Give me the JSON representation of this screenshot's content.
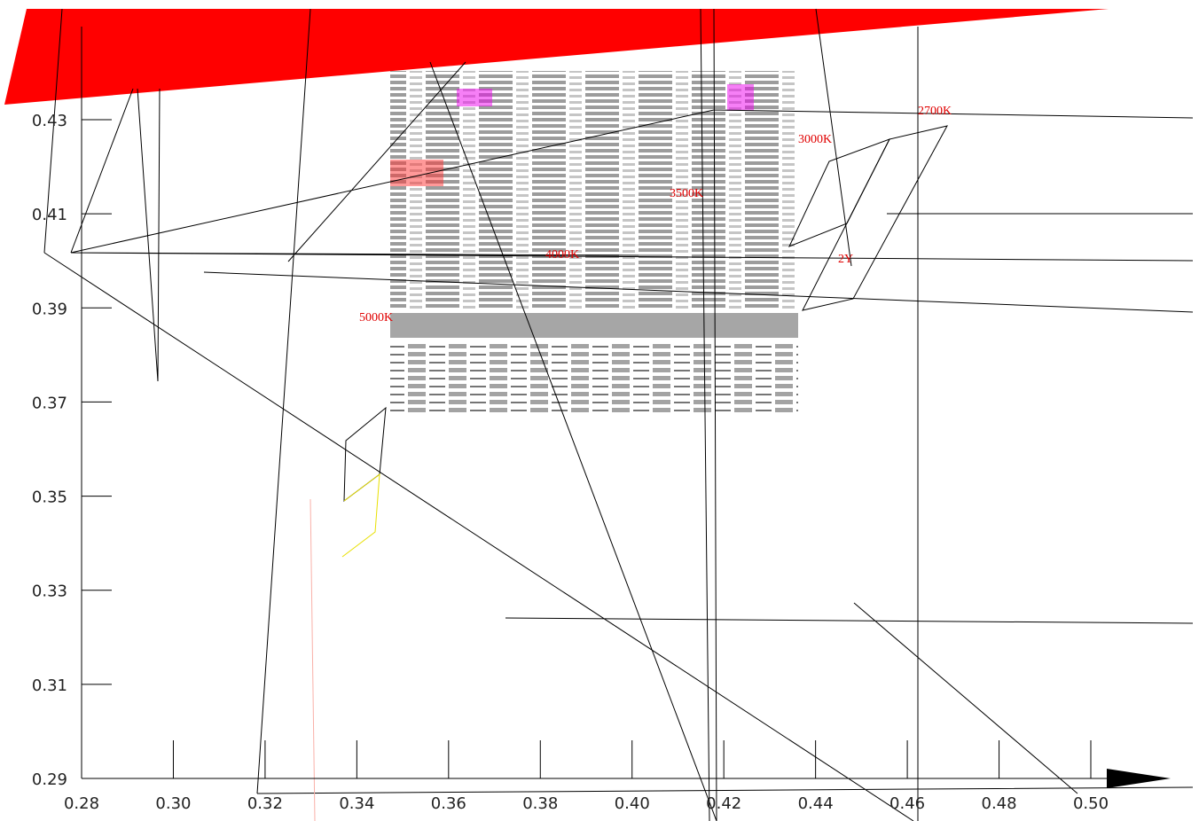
{
  "chart_data": {
    "type": "scatter",
    "xlim": [
      0.28,
      0.5
    ],
    "ylim": [
      0.29,
      0.43
    ],
    "xticks": [
      0.28,
      {
        "value": 0.3,
        "label": "0.30"
      },
      0.32,
      0.34,
      0.36,
      0.38,
      {
        "value": 0.4,
        "label": "0.40"
      },
      0.42,
      0.44,
      0.46,
      0.48,
      {
        "value": 0.5,
        "label": "0.50"
      }
    ],
    "yticks": [
      0.29,
      0.31,
      0.33,
      0.35,
      0.37,
      0.39,
      0.41,
      0.43
    ],
    "annotations": [
      "2700K",
      "3000K",
      "3500K",
      "4000K",
      "5000K",
      "2Y"
    ],
    "annotation_color": "#e00000"
  }
}
